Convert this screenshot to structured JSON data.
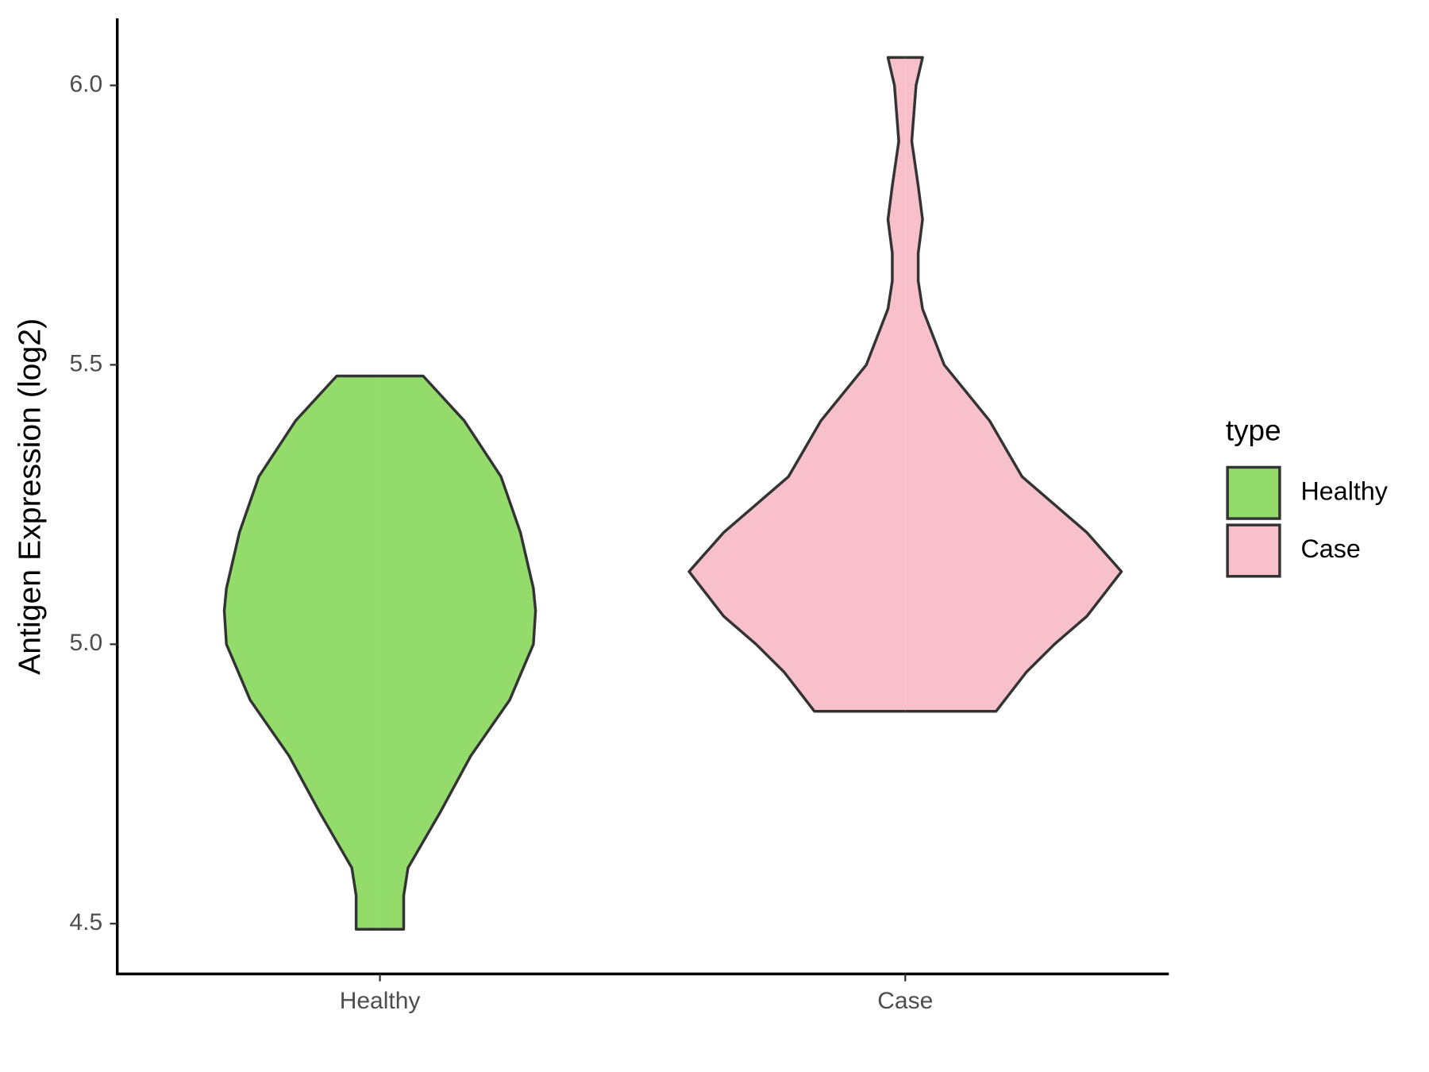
{
  "chart_data": {
    "type": "violin",
    "y_label": "Antigen Expression (log2)",
    "legend_title": "type",
    "categories": [
      "Healthy",
      "Case"
    ],
    "series": [
      {
        "name": "Healthy",
        "color": "#93dc6b",
        "y": [
          4.49,
          4.55,
          4.6,
          4.7,
          4.8,
          4.9,
          5.0,
          5.06,
          5.1,
          5.2,
          5.3,
          5.4,
          5.48
        ],
        "density": [
          0.11,
          0.11,
          0.13,
          0.28,
          0.42,
          0.6,
          0.71,
          0.72,
          0.71,
          0.65,
          0.56,
          0.39,
          0.2
        ]
      },
      {
        "name": "Case",
        "color": "#f7c0cb",
        "y": [
          4.88,
          4.95,
          5.0,
          5.05,
          5.13,
          5.2,
          5.3,
          5.4,
          5.5,
          5.6,
          5.65,
          5.7,
          5.76,
          5.82,
          5.9,
          6.0,
          6.05
        ],
        "density": [
          0.42,
          0.56,
          0.69,
          0.84,
          1.0,
          0.84,
          0.54,
          0.39,
          0.18,
          0.08,
          0.06,
          0.06,
          0.08,
          0.06,
          0.03,
          0.05,
          0.08
        ]
      }
    ],
    "ylim": [
      4.41,
      6.12
    ],
    "yticks": [
      {
        "value": 4.5,
        "label": "4.5"
      },
      {
        "value": 5.0,
        "label": "5.0"
      },
      {
        "value": 5.5,
        "label": "5.5"
      },
      {
        "value": 6.0,
        "label": "6.0"
      }
    ],
    "legend": "right"
  }
}
